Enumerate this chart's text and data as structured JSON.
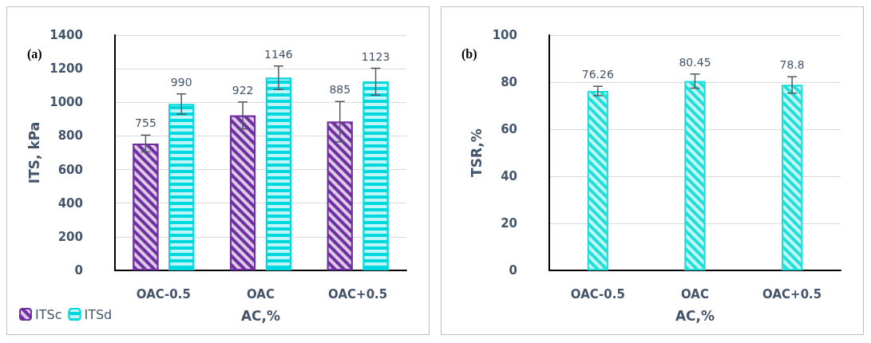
{
  "chart_data": [
    {
      "type": "bar",
      "title": "(a)",
      "xlabel": "AC,%",
      "ylabel": "ITS, kPa",
      "categories": [
        "OAC-0.5",
        "OAC",
        "OAC+0.5"
      ],
      "series": [
        {
          "name": "ITSc",
          "color": "#7030a0",
          "values": [
            755,
            922,
            885
          ],
          "errors": [
            50,
            80,
            120
          ]
        },
        {
          "name": "ITSd",
          "color": "#00d8e0",
          "values": [
            990,
            1146,
            1123
          ],
          "errors": [
            60,
            70,
            80
          ]
        }
      ],
      "ylim": [
        0,
        1400
      ],
      "yticks": [
        0,
        200,
        400,
        600,
        800,
        1000,
        1200,
        1400
      ],
      "grid": "y",
      "legend": "bottom left",
      "data_labels": true
    },
    {
      "type": "bar",
      "title": "(b)",
      "xlabel": "AC,%",
      "ylabel": "TSR,%",
      "categories": [
        "OAC-0.5",
        "OAC",
        "OAC+0.5"
      ],
      "series": [
        {
          "color": "#1fe0d8",
          "values": [
            76.26,
            80.45,
            78.8
          ],
          "errors": [
            2,
            3,
            3.5
          ]
        }
      ],
      "ylim": [
        0,
        100
      ],
      "yticks": [
        0,
        20,
        40,
        60,
        80,
        100
      ],
      "grid": "y",
      "data_labels": true
    }
  ]
}
